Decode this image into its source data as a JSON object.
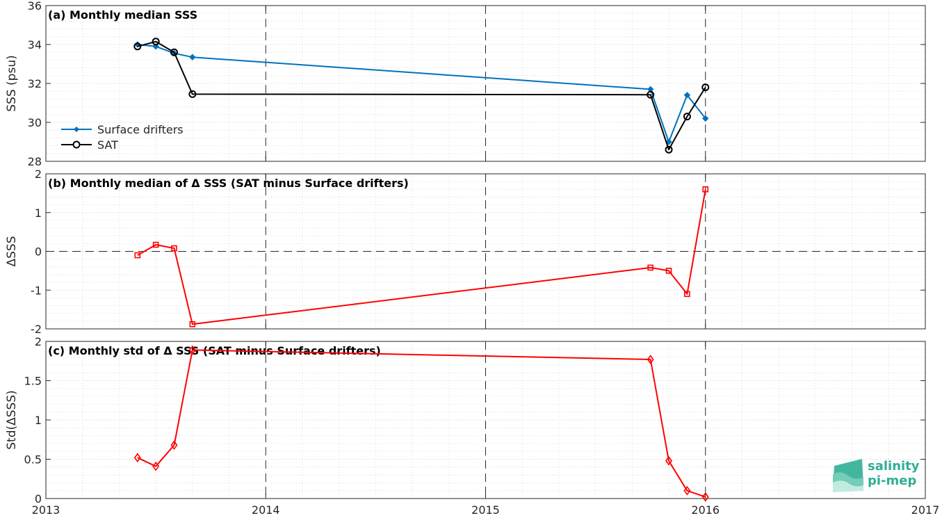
{
  "chart_data": [
    {
      "type": "line",
      "title": "(a) Monthly median SSS",
      "xlabel": "",
      "ylabel": "SSS (psu)",
      "xlim": [
        "2013-01",
        "2017-01"
      ],
      "ylim": [
        28,
        36
      ],
      "yticks": [
        "28",
        "30",
        "32",
        "34",
        "36"
      ],
      "grid": true,
      "legend_position": "bottom-left",
      "series": [
        {
          "name": "Surface drifters",
          "color": "#0072bd",
          "marker": "filled-diamond",
          "x": [
            "2013-06",
            "2013-07",
            "2013-08",
            "2013-09",
            "2015-10",
            "2015-11",
            "2015-12",
            "2016-01"
          ],
          "y": [
            34.0,
            33.9,
            33.55,
            33.35,
            31.7,
            29.0,
            31.4,
            30.2
          ]
        },
        {
          "name": "SAT",
          "color": "#000000",
          "marker": "open-circle",
          "x": [
            "2013-06",
            "2013-07",
            "2013-08",
            "2013-09",
            "2015-10",
            "2015-11",
            "2015-12",
            "2016-01"
          ],
          "y": [
            33.9,
            34.15,
            33.6,
            31.45,
            31.42,
            28.6,
            30.3,
            31.8
          ]
        }
      ]
    },
    {
      "type": "line",
      "title": "(b) Monthly median of Δ SSS (SAT minus Surface drifters)",
      "xlabel": "",
      "ylabel": "ΔSSS",
      "xlim": [
        "2013-01",
        "2017-01"
      ],
      "ylim": [
        -2,
        2
      ],
      "yticks": [
        "-2",
        "-1",
        "0",
        "1",
        "2"
      ],
      "grid": true,
      "series": [
        {
          "color": "#ff0000",
          "marker": "open-square",
          "x": [
            "2013-06",
            "2013-07",
            "2013-08",
            "2013-09",
            "2015-10",
            "2015-11",
            "2015-12",
            "2016-01"
          ],
          "y": [
            -0.1,
            0.17,
            0.08,
            -1.88,
            -0.42,
            -0.5,
            -1.1,
            1.6
          ]
        }
      ]
    },
    {
      "type": "line",
      "title": "(c) Monthly std of Δ SSS (SAT minus Surface drifters)",
      "xlabel": "",
      "ylabel": "Std(ΔSSS)",
      "xlim": [
        "2013-01",
        "2017-01"
      ],
      "ylim": [
        0,
        2
      ],
      "yticks": [
        "0",
        "0.5",
        "1",
        "1.5",
        "2"
      ],
      "xticks": [
        "2013",
        "2014",
        "2015",
        "2016",
        "2017"
      ],
      "grid": true,
      "series": [
        {
          "color": "#ff0000",
          "marker": "open-diamond",
          "x": [
            "2013-06",
            "2013-07",
            "2013-08",
            "2013-09",
            "2015-10",
            "2015-11",
            "2015-12",
            "2016-01"
          ],
          "y": [
            0.52,
            0.41,
            0.68,
            1.89,
            1.77,
            0.48,
            0.1,
            0.02
          ]
        }
      ]
    }
  ],
  "logo": {
    "line1": "salinity",
    "line2": "pi-mep",
    "color": "#2fae96"
  }
}
